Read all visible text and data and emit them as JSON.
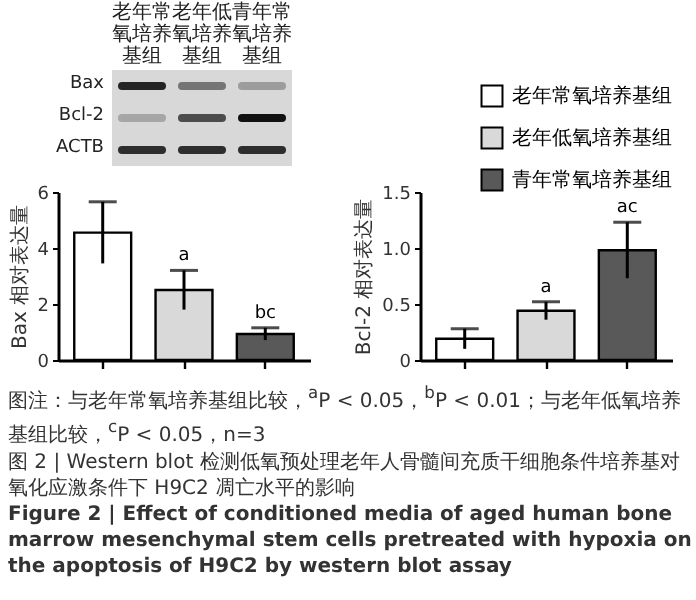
{
  "chart_data": [
    {
      "type": "other",
      "annotations": [
        "老年常氧培养基组",
        "老年低氧培养基组",
        "青年常氧培养基组",
        "Bax",
        "Bcl-2",
        "ACTB"
      ]
    },
    {
      "type": "bar",
      "ylabel": "Bax 相对表达量",
      "categories": [
        null,
        null,
        null
      ],
      "series": [
        {
          "color": "#ffffff",
          "values": [
            4.55,
            null,
            null
          ],
          "errors": [
            1.1,
            null,
            null
          ]
        },
        {
          "color": "#d9d9d9",
          "values": [
            null,
            2.5,
            null
          ],
          "errors": [
            null,
            0.7,
            null
          ],
          "value_labels": [
            null,
            "a",
            null
          ]
        },
        {
          "color": "#595959",
          "values": [
            null,
            null,
            0.93
          ],
          "errors": [
            null,
            null,
            0.22
          ],
          "value_labels": [
            null,
            null,
            "bc"
          ]
        }
      ],
      "ylim": [
        0,
        6
      ],
      "yticks": [
        0,
        2,
        4,
        6
      ],
      "tick_labels": "y"
    },
    {
      "type": "bar",
      "ylabel": "Bcl-2 相对表达量",
      "categories": [
        null,
        null,
        null
      ],
      "series": [
        {
          "name": "老年常氧培养基组",
          "color": "#ffffff",
          "values": [
            0.19,
            null,
            null
          ],
          "errors": [
            0.09,
            null,
            null
          ]
        },
        {
          "name": "老年低氧培养基组",
          "color": "#d9d9d9",
          "values": [
            null,
            0.44,
            null
          ],
          "errors": [
            null,
            0.08,
            null
          ],
          "value_labels": [
            null,
            "a",
            null
          ]
        },
        {
          "name": "青年常氧培养基组",
          "color": "#595959",
          "values": [
            null,
            null,
            0.98
          ],
          "errors": [
            null,
            null,
            0.25
          ],
          "value_labels": [
            null,
            null,
            "ac"
          ]
        }
      ],
      "ylim": [
        0,
        1.5
      ],
      "yticks": [
        0,
        0.5,
        {
          "value": 1,
          "label": "1.0"
        },
        {
          "value": 1.5,
          "label": "1.5"
        }
      ],
      "tick_labels": "y",
      "legend": "top"
    },
    {
      "type": "other",
      "annotations": [
        "图注：与老年常氧培养基组比较，$^{a}$P < 0.05，$^{b}$P < 0.01；与老年低氧培养基组比较，$^{c}$P < 0.05，n=3",
        "图 2 | Western blot 检测低氧预处理老年人骨髓间充质干细胞条件培养基对氧化应激条件下 H9C2 凋亡水平的影响",
        "Figure 2 | Effect of conditioned media of aged human bone marrow mesenchymal stem cells pretreated with hypoxia on the apoptosis of H9C2 by western blot assay"
      ]
    }
  ]
}
